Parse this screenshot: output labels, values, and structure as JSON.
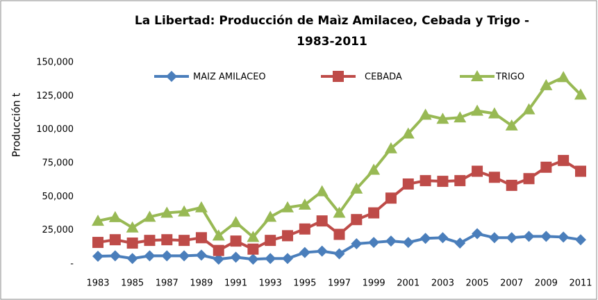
{
  "chart_data": {
    "type": "line",
    "title_lines": [
      "La Libertad: Producción de Maìz Amilaceo, Cebada y Trigo -",
      "1983-2011"
    ],
    "y_label": "Producción t",
    "categories": [
      "1983",
      null,
      "1985",
      null,
      "1987",
      null,
      "1989",
      null,
      "1991",
      null,
      "1993",
      null,
      "1995",
      null,
      "1997",
      null,
      "1999",
      null,
      "2001",
      null,
      "2003",
      null,
      "2005",
      null,
      "2007",
      null,
      "2009",
      null,
      "2011"
    ],
    "ylim": [
      0,
      150000
    ],
    "yticks": [
      {
        "value": 0,
        "label": "-"
      },
      {
        "value": 25000,
        "label": "25,000"
      },
      {
        "value": 50000,
        "label": "50,000"
      },
      {
        "value": 75000,
        "label": "75,000"
      },
      {
        "value": 100000,
        "label": "100,000"
      },
      {
        "value": 125000,
        "label": "125,000"
      },
      {
        "value": 150000,
        "label": "150,000"
      }
    ],
    "legend": "top",
    "series": [
      {
        "name": "MAIZ AMILACEO",
        "color": "#4a7ebb",
        "marker": "diamond",
        "values": [
          5700,
          6000,
          4000,
          6000,
          6000,
          6000,
          6500,
          3500,
          5000,
          3500,
          4000,
          4000,
          8500,
          9500,
          7500,
          15000,
          16000,
          17000,
          16000,
          19000,
          19500,
          15500,
          22500,
          19500,
          19500,
          20500,
          20500,
          20000,
          18000
        ]
      },
      {
        "name": "CEBADA",
        "color": "#be4b48",
        "marker": "square",
        "values": [
          16000,
          18000,
          15500,
          17500,
          18000,
          17500,
          19500,
          10000,
          17000,
          11000,
          17500,
          21000,
          26000,
          32000,
          22000,
          33000,
          38000,
          49000,
          59500,
          62000,
          61500,
          62000,
          69000,
          64500,
          58500,
          63500,
          72000,
          77000,
          69000
        ]
      },
      {
        "name": "TRIGO",
        "color": "#98b954",
        "marker": "triangle",
        "values": [
          32000,
          34700,
          27000,
          35000,
          38000,
          39000,
          42000,
          21000,
          31000,
          20000,
          35000,
          42000,
          44000,
          54000,
          38000,
          56000,
          70000,
          86000,
          97000,
          111000,
          108000,
          109000,
          114000,
          112000,
          103000,
          115000,
          133000,
          139000,
          126000
        ]
      }
    ]
  }
}
